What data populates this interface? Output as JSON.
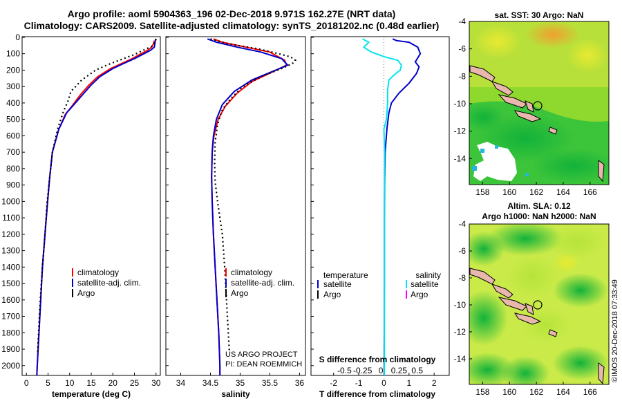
{
  "title": {
    "line1": "Argo profile: aoml 5904363_196 02-Dec-2018 9.971S 162.27E (NRT data)",
    "line2": "Climatology: CARS2009. Satellite-adjusted climatology: synTS_20181202.nc (0.48d earlier)"
  },
  "colors": {
    "climatology": "#ff0000",
    "satellite": "#0000cc",
    "argo": "#000000",
    "salinity_sat": "#00e5ee",
    "salinity_argo": "#ff00ff"
  },
  "depth_ticks": [
    "0",
    "100",
    "200",
    "300",
    "400",
    "500",
    "600",
    "700",
    "800",
    "900",
    "1000",
    "1100",
    "1200",
    "1300",
    "1400",
    "1500",
    "1600",
    "1700",
    "1800",
    "1900",
    "2000"
  ],
  "chart_data": [
    {
      "type": "line",
      "name": "temperature-profile",
      "xlabel": "temperature (deg C)",
      "ylabel": "depth",
      "xlim": [
        -1,
        31
      ],
      "ylim": [
        2060,
        -4
      ],
      "xticks": [
        "0",
        "5",
        "10",
        "15",
        "20",
        "25",
        "30"
      ],
      "series": [
        {
          "name": "climatology",
          "color": "#ff0000",
          "points": [
            [
              29.6,
              20
            ],
            [
              29.4,
              40
            ],
            [
              29,
              60
            ],
            [
              28,
              80
            ],
            [
              26.5,
              100
            ],
            [
              24.5,
              130
            ],
            [
              22,
              160
            ],
            [
              19.5,
              190
            ],
            [
              16.5,
              240
            ],
            [
              14.5,
              290
            ],
            [
              12.5,
              350
            ],
            [
              10.5,
              420
            ],
            [
              9,
              470
            ],
            [
              7.5,
              560
            ],
            [
              6,
              700
            ],
            [
              5.4,
              850
            ],
            [
              4.9,
              1000
            ],
            [
              4.3,
              1200
            ],
            [
              3.7,
              1400
            ],
            [
              3.3,
              1600
            ],
            [
              2.9,
              1800
            ],
            [
              2.5,
              2000
            ],
            [
              2.4,
              2060
            ]
          ]
        },
        {
          "name": "satellite-adj. clim.",
          "color": "#0000cc",
          "points": [
            [
              29.9,
              10
            ],
            [
              29.8,
              30
            ],
            [
              29.6,
              60
            ],
            [
              28.7,
              80
            ],
            [
              27.2,
              100
            ],
            [
              25,
              130
            ],
            [
              22.5,
              160
            ],
            [
              20,
              190
            ],
            [
              17,
              240
            ],
            [
              15,
              290
            ],
            [
              13,
              350
            ],
            [
              11,
              410
            ],
            [
              9.3,
              460
            ],
            [
              7.5,
              560
            ],
            [
              6,
              700
            ],
            [
              5.4,
              850
            ],
            [
              4.9,
              1000
            ],
            [
              4.3,
              1200
            ],
            [
              3.7,
              1400
            ],
            [
              3.3,
              1600
            ],
            [
              2.9,
              1800
            ],
            [
              2.5,
              2000
            ],
            [
              2.4,
              2060
            ]
          ]
        },
        {
          "name": "Argo",
          "color": "#000000",
          "points": [
            [
              30,
              10
            ],
            [
              29.8,
              30
            ],
            [
              29,
              55
            ],
            [
              27,
              80
            ],
            [
              25,
              105
            ],
            [
              22.5,
              130
            ],
            [
              19.5,
              160
            ],
            [
              16,
              200
            ],
            [
              12.8,
              260
            ],
            [
              10.3,
              330
            ],
            [
              9.6,
              390
            ],
            [
              8.6,
              450
            ],
            [
              7.3,
              550
            ],
            [
              6,
              700
            ],
            [
              5.4,
              850
            ],
            [
              4.8,
              1000
            ],
            [
              4.3,
              1200
            ],
            [
              3.7,
              1400
            ],
            [
              3.2,
              1600
            ],
            [
              2.8,
              1800
            ],
            [
              2.6,
              1920
            ]
          ]
        }
      ],
      "legend": [
        "climatology",
        "satellite-adj. clim.",
        "Argo"
      ]
    },
    {
      "type": "line",
      "name": "salinity-profile",
      "xlabel": "salinity",
      "ylabel": "depth",
      "xlim": [
        33.75,
        36.1
      ],
      "ylim": [
        2060,
        -4
      ],
      "xticks": [
        "34",
        "34.5",
        "35",
        "35.5",
        "36"
      ],
      "series": [
        {
          "name": "climatology",
          "color": "#ff0000",
          "points": [
            [
              34.55,
              10
            ],
            [
              34.7,
              30
            ],
            [
              35.1,
              60
            ],
            [
              35.5,
              90
            ],
            [
              35.75,
              140
            ],
            [
              35.78,
              170
            ],
            [
              35.55,
              210
            ],
            [
              35.2,
              270
            ],
            [
              34.95,
              340
            ],
            [
              34.75,
              420
            ],
            [
              34.63,
              500
            ],
            [
              34.56,
              600
            ],
            [
              34.53,
              700
            ],
            [
              34.52,
              850
            ],
            [
              34.53,
              1000
            ],
            [
              34.55,
              1200
            ],
            [
              34.58,
              1400
            ],
            [
              34.61,
              1600
            ],
            [
              34.64,
              1800
            ],
            [
              34.66,
              2000
            ],
            [
              34.66,
              2060
            ]
          ]
        },
        {
          "name": "satellite-adj. clim.",
          "color": "#0000cc",
          "points": [
            [
              34.45,
              10
            ],
            [
              34.6,
              30
            ],
            [
              34.95,
              60
            ],
            [
              35.35,
              90
            ],
            [
              35.7,
              130
            ],
            [
              35.8,
              170
            ],
            [
              35.6,
              200
            ],
            [
              35.2,
              260
            ],
            [
              34.9,
              330
            ],
            [
              34.7,
              410
            ],
            [
              34.6,
              500
            ],
            [
              34.55,
              600
            ],
            [
              34.53,
              700
            ],
            [
              34.52,
              850
            ],
            [
              34.53,
              1000
            ],
            [
              34.55,
              1200
            ],
            [
              34.58,
              1400
            ],
            [
              34.61,
              1600
            ],
            [
              34.64,
              1800
            ],
            [
              34.66,
              2000
            ],
            [
              34.66,
              2060
            ]
          ]
        },
        {
          "name": "Argo",
          "color": "#000000",
          "points": [
            [
              34.5,
              10
            ],
            [
              34.8,
              40
            ],
            [
              35.3,
              70
            ],
            [
              35.65,
              100
            ],
            [
              35.85,
              120
            ],
            [
              35.93,
              140
            ],
            [
              35.88,
              160
            ],
            [
              35.7,
              190
            ],
            [
              35.35,
              240
            ],
            [
              35.05,
              300
            ],
            [
              34.85,
              370
            ],
            [
              34.7,
              440
            ],
            [
              34.62,
              530
            ],
            [
              34.58,
              640
            ],
            [
              34.57,
              760
            ],
            [
              34.58,
              880
            ],
            [
              34.62,
              1000
            ],
            [
              34.66,
              1100
            ],
            [
              34.7,
              1200
            ],
            [
              34.74,
              1400
            ],
            [
              34.77,
              1600
            ],
            [
              34.8,
              1800
            ],
            [
              34.82,
              1920
            ]
          ]
        }
      ],
      "legend": [
        "climatology",
        "satellite-adj. clim.",
        "Argo"
      ],
      "credit": [
        "US ARGO PROJECT",
        "PI: DEAN ROEMMICH"
      ]
    },
    {
      "type": "line",
      "name": "difference-profile",
      "xlabel": "T difference from climatology",
      "xlabel_top": "S difference from climatology",
      "ylabel": "depth",
      "xlim": [
        -2.9,
        2.6
      ],
      "ylim": [
        2060,
        -4
      ],
      "xticks": [
        "-2",
        "-1",
        "0",
        "1",
        "2"
      ],
      "xticks_top": [
        "-0.5",
        "-0.25",
        "0",
        "0.25",
        "0.5"
      ],
      "series": [
        {
          "name": "temperature satellite",
          "color": "#0000cc",
          "points": [
            [
              0.35,
              10
            ],
            [
              0.5,
              20
            ],
            [
              1.0,
              30
            ],
            [
              1.35,
              60
            ],
            [
              1.45,
              100
            ],
            [
              1.25,
              150
            ],
            [
              1.4,
              180
            ],
            [
              1.3,
              220
            ],
            [
              1.0,
              280
            ],
            [
              0.6,
              340
            ],
            [
              0.3,
              400
            ],
            [
              0.2,
              460
            ],
            [
              0.12,
              560
            ],
            [
              0.05,
              700
            ],
            [
              0.03,
              900
            ],
            [
              0.02,
              1100
            ],
            [
              0.02,
              1500
            ],
            [
              0.01,
              2060
            ]
          ]
        },
        {
          "name": "salinity satellite",
          "color": "#00e5ee",
          "points": [
            [
              -0.85,
              10
            ],
            [
              -0.6,
              30
            ],
            [
              -0.8,
              60
            ],
            [
              -0.5,
              90
            ],
            [
              0.05,
              120
            ],
            [
              0.55,
              140
            ],
            [
              0.7,
              170
            ],
            [
              0.65,
              200
            ],
            [
              0.4,
              230
            ],
            [
              0.2,
              260
            ],
            [
              0.15,
              320
            ],
            [
              0.15,
              400
            ],
            [
              0.1,
              500
            ],
            [
              0.0,
              560
            ],
            [
              0.03,
              700
            ],
            [
              0.02,
              1000
            ],
            [
              0.02,
              1500
            ],
            [
              0.02,
              2060
            ]
          ]
        }
      ],
      "legend_left_title": "temperature",
      "legend_right_title": "salinity",
      "legend_left": [
        "satellite",
        "Argo"
      ],
      "legend_right": [
        "satellite",
        "Argo"
      ]
    }
  ],
  "sst_map": {
    "title": "sat. SST: 30 Argo: NaN",
    "yticks": [
      "-4",
      "-6",
      "-8",
      "-10",
      "-12",
      "-14"
    ],
    "xticks": [
      "158",
      "160",
      "162",
      "164",
      "166"
    ]
  },
  "sla_map": {
    "title1": "Altim. SLA: 0.12",
    "title2": "Argo h1000: NaN h2000: NaN",
    "yticks": [
      "-4",
      "-6",
      "-8",
      "-10",
      "-12",
      "-14"
    ],
    "xticks": [
      "158",
      "160",
      "162",
      "164",
      "166"
    ]
  },
  "copyright": "©IMOS 20-Dec-2018 07:33:49"
}
